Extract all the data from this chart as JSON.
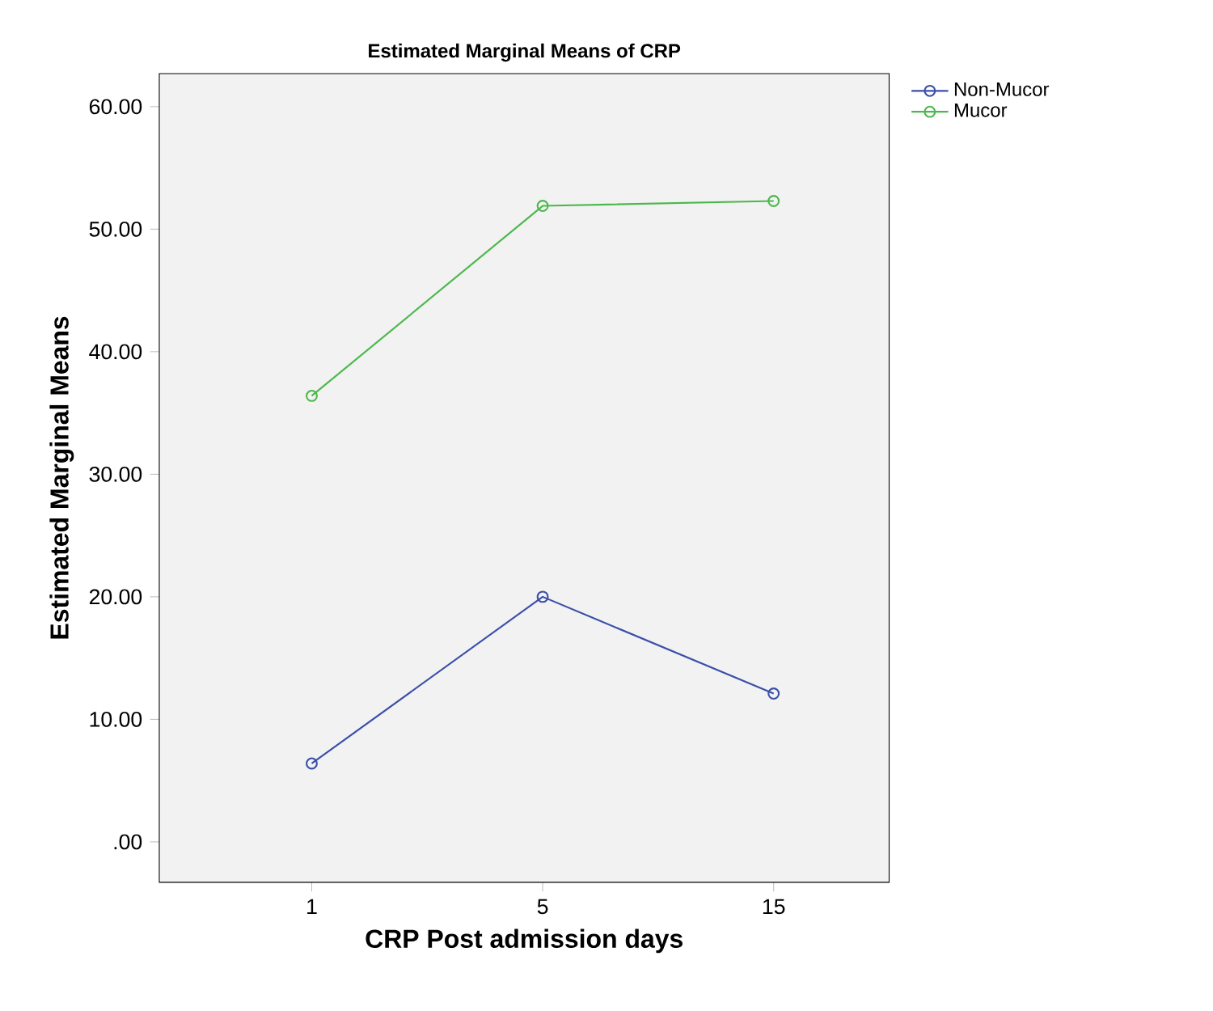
{
  "chart_data": {
    "type": "line",
    "title": "Estimated Marginal Means of CRP",
    "xlabel": "CRP Post admission days",
    "ylabel": "Estimated Marginal Means",
    "categories": [
      "1",
      "5",
      "15"
    ],
    "series": [
      {
        "name": "Non-Mucor",
        "color": "#3a4fa8",
        "values": [
          6.4,
          20.0,
          12.1
        ]
      },
      {
        "name": "Mucor",
        "color": "#4cb84c",
        "values": [
          36.4,
          51.9,
          52.3
        ]
      }
    ],
    "ylim": [
      -3.3,
      62.7
    ],
    "yticks": [
      {
        "value": 0,
        "label": ".00"
      },
      {
        "value": 10,
        "label": "10.00"
      },
      {
        "value": 20,
        "label": "20.00"
      },
      {
        "value": 30,
        "label": "30.00"
      },
      {
        "value": 40,
        "label": "40.00"
      },
      {
        "value": 50,
        "label": "50.00"
      },
      {
        "value": 60,
        "label": "60.00"
      }
    ],
    "legend": "top right",
    "marker": "circle",
    "line_style": "solid",
    "grid": false
  }
}
